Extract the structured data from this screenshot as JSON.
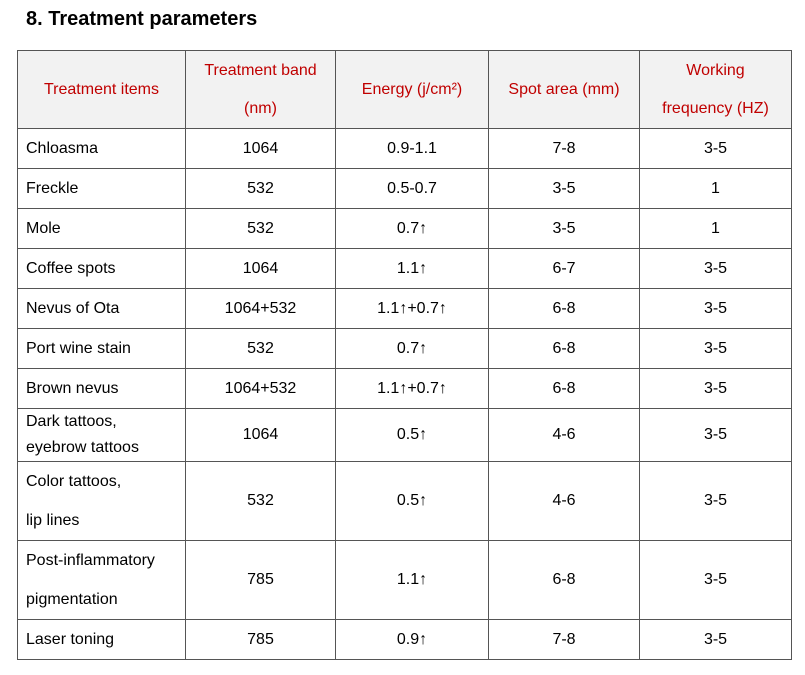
{
  "section": {
    "title": "8.  Treatment parameters"
  },
  "table": {
    "headers": {
      "item": "Treatment items",
      "band_l1": "Treatment band",
      "band_l2": "(nm)",
      "energy": "Energy (j/cm²)",
      "spot": "Spot area (mm)",
      "freq_l1": "Working",
      "freq_l2": "frequency (HZ)"
    },
    "rows": [
      {
        "item_l1": "Chloasma",
        "item_l2": "",
        "band": "1064",
        "energy": "0.9-1.1",
        "spot": "7-8",
        "freq": "3-5"
      },
      {
        "item_l1": "Freckle",
        "item_l2": "",
        "band": "532",
        "energy": "0.5-0.7",
        "spot": "3-5",
        "freq": "1"
      },
      {
        "item_l1": "Mole",
        "item_l2": "",
        "band": "532",
        "energy": "0.7↑",
        "spot": "3-5",
        "freq": "1"
      },
      {
        "item_l1": "Coffee spots",
        "item_l2": "",
        "band": "1064",
        "energy": "1.1↑",
        "spot": "6-7",
        "freq": "3-5"
      },
      {
        "item_l1": "Nevus of Ota",
        "item_l2": "",
        "band": "1064+532",
        "energy": "1.1↑+0.7↑",
        "spot": "6-8",
        "freq": "3-5"
      },
      {
        "item_l1": "Port wine stain",
        "item_l2": "",
        "band": "532",
        "energy": "0.7↑",
        "spot": "6-8",
        "freq": "3-5"
      },
      {
        "item_l1": "Brown nevus",
        "item_l2": "",
        "band": "1064+532",
        "energy": "1.1↑+0.7↑",
        "spot": "6-8",
        "freq": "3-5"
      },
      {
        "item_l1": "Dark tattoos,",
        "item_l2": "eyebrow tattoos",
        "band": "1064",
        "energy": "0.5↑",
        "spot": "4-6",
        "freq": "3-5"
      },
      {
        "item_l1": "Color tattoos,",
        "item_l2": "lip lines",
        "band": "532",
        "energy": "0.5↑",
        "spot": "4-6",
        "freq": "3-5"
      },
      {
        "item_l1": "Post-inflammatory",
        "item_l2": "pigmentation",
        "band": "785",
        "energy": "1.1↑",
        "spot": "6-8",
        "freq": "3-5"
      },
      {
        "item_l1": "Laser toning",
        "item_l2": "",
        "band": "785",
        "energy": "0.9↑",
        "spot": "7-8",
        "freq": "3-5"
      }
    ]
  }
}
